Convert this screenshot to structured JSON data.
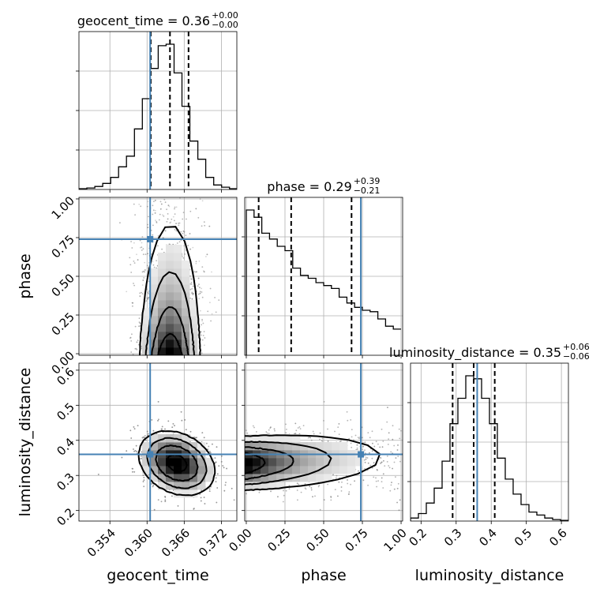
{
  "chart_data": {
    "type": "corner",
    "parameters": [
      "geocent_time",
      "phase",
      "luminosity_distance"
    ],
    "titles": [
      {
        "main": "geocent_time = 0.36",
        "plus": "+0.00",
        "minus": "−0.00"
      },
      {
        "main": "phase = 0.29",
        "plus": "+0.39",
        "minus": "−0.21"
      },
      {
        "main": "luminosity_distance = 0.35",
        "plus": "+0.06",
        "minus": "−0.06"
      }
    ],
    "ranges": [
      [
        0.349,
        0.3745
      ],
      [
        -0.01,
        1.01
      ],
      [
        0.17,
        0.62
      ]
    ],
    "ticks": [
      {
        "values": [
          0.354,
          0.36,
          0.366,
          0.372
        ],
        "labels": [
          "0.354",
          "0.360",
          "0.366",
          "0.372"
        ]
      },
      {
        "values": [
          0.0,
          0.25,
          0.5,
          0.75,
          1.0
        ],
        "labels": [
          "0.00",
          "0.25",
          "0.50",
          "0.75",
          "1.00"
        ]
      },
      {
        "values": [
          0.2,
          0.3,
          0.4,
          0.5,
          0.6
        ],
        "labels": [
          "0.2",
          "0.3",
          "0.4",
          "0.5",
          "0.6"
        ]
      }
    ],
    "injected_values": [
      0.3605,
      0.74,
      0.36
    ],
    "quantiles": [
      [
        0.3606,
        0.3637,
        0.3667
      ],
      [
        0.08,
        0.29,
        0.68
      ],
      [
        0.29,
        0.35,
        0.41
      ]
    ],
    "histograms": [
      {
        "edges_start": 0.349,
        "bin_width": 0.00128,
        "counts": [
          0.5,
          1,
          2,
          4,
          8,
          15,
          22,
          40,
          60,
          80,
          95,
          96,
          77,
          55,
          32,
          20,
          8,
          3,
          1.5,
          0.5
        ]
      },
      {
        "edges_start": 0.0,
        "bin_width": 0.05,
        "counts": [
          100,
          95,
          84,
          80,
          75,
          72,
          60,
          55,
          53,
          50,
          48,
          46,
          40,
          36,
          33,
          31,
          30,
          25,
          20,
          18
        ]
      },
      {
        "edges_start": 0.17,
        "bin_width": 0.0225,
        "counts": [
          2,
          5,
          12,
          22,
          40,
          65,
          82,
          97,
          95,
          82,
          65,
          42,
          28,
          18,
          11,
          6,
          4,
          2,
          1,
          0.5
        ]
      }
    ],
    "grid": true,
    "colors": {
      "truth": "#4682b4",
      "lines": "#000000",
      "scatter": "#808080",
      "grid": "#b0b0b0"
    }
  }
}
